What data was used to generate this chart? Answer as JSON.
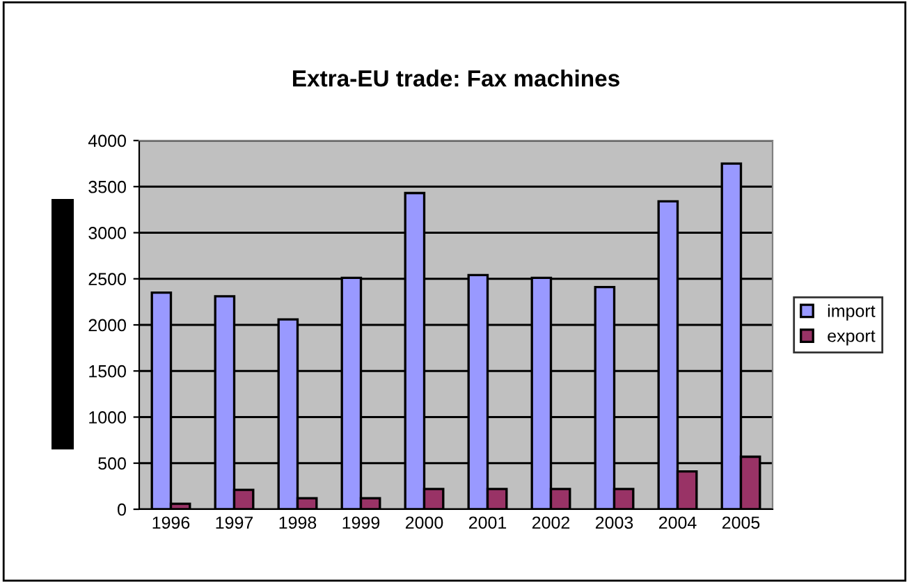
{
  "chart_data": {
    "type": "bar",
    "title": "Extra-EU trade: Fax machines",
    "categories": [
      "1996",
      "1997",
      "1998",
      "1999",
      "2000",
      "2001",
      "2002",
      "2003",
      "2004",
      "2005"
    ],
    "series": [
      {
        "name": "import",
        "color": "#9999ff",
        "values": [
          2350,
          2310,
          2060,
          2510,
          3430,
          2540,
          2510,
          2410,
          3340,
          3750
        ]
      },
      {
        "name": "export",
        "color": "#993366",
        "values": [
          60,
          210,
          120,
          120,
          220,
          220,
          220,
          220,
          410,
          570
        ]
      }
    ],
    "ylim": [
      0,
      4000
    ],
    "yticks": [
      0,
      500,
      1000,
      1500,
      2000,
      2500,
      3000,
      3500,
      4000
    ],
    "grid": "y",
    "legend": "right"
  }
}
